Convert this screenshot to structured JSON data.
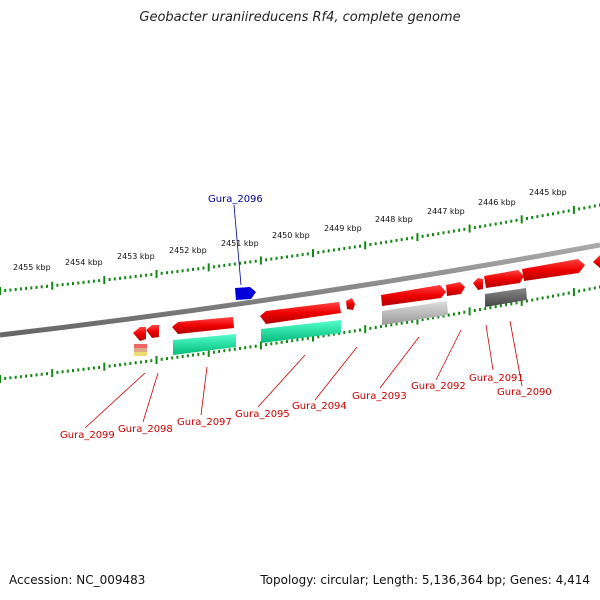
{
  "title": "Geobacter uraniireducens Rf4, complete genome",
  "footer": {
    "accession": "Accession: NC_009483",
    "summary": "Topology: circular; Length: 5,136,364 bp; Genes: 4,414"
  },
  "colors": {
    "tick": "#118811",
    "backbone": "#808080",
    "forward_gene": "#ee0000",
    "reverse_gene": "#ee0000",
    "highlight_gene": "#0000dd",
    "label_red": "#cc0000",
    "label_blue": "#000099",
    "teal": "#11dd99",
    "light_gray": "#bbbbbb",
    "dark_gray": "#555555"
  },
  "scale_labels": [
    "2455 kbp",
    "2454 kbp",
    "2453 kbp",
    "2452 kbp",
    "2451 kbp",
    "2450 kbp",
    "2449 kbp",
    "2448 kbp",
    "2447 kbp",
    "2446 kbp",
    "2445 kbp"
  ],
  "genes": [
    {
      "name": "Gura_2096",
      "color": "blue"
    },
    {
      "name": "Gura_2099",
      "color": "red"
    },
    {
      "name": "Gura_2098",
      "color": "red"
    },
    {
      "name": "Gura_2097",
      "color": "red"
    },
    {
      "name": "Gura_2095",
      "color": "red"
    },
    {
      "name": "Gura_2094",
      "color": "red"
    },
    {
      "name": "Gura_2093",
      "color": "red"
    },
    {
      "name": "Gura_2092",
      "color": "red"
    },
    {
      "name": "Gura_2091",
      "color": "red"
    },
    {
      "name": "Gura_2090",
      "color": "red"
    }
  ]
}
